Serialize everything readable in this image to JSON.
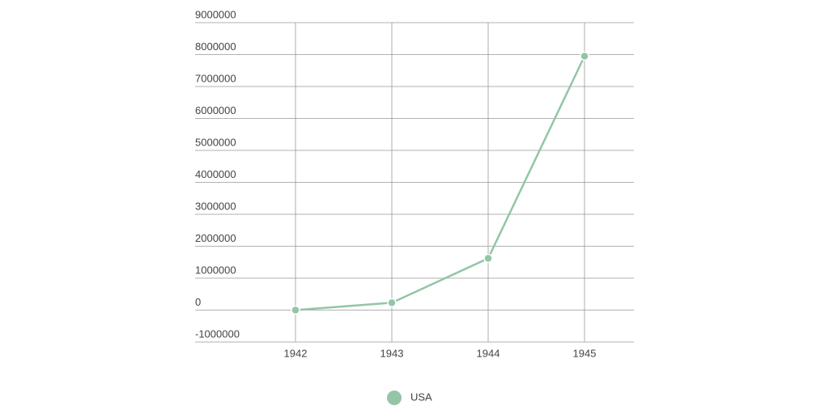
{
  "chart_data": {
    "type": "line",
    "categories": [
      "1942",
      "1943",
      "1944",
      "1945"
    ],
    "series": [
      {
        "name": "USA",
        "color": "#93c5a6",
        "values": [
          0,
          230000,
          1620000,
          7950000
        ]
      }
    ],
    "ylim": [
      -1000000,
      9000000
    ],
    "yticks": [
      -1000000,
      0,
      1000000,
      2000000,
      3000000,
      4000000,
      5000000,
      6000000,
      7000000,
      8000000,
      9000000
    ],
    "grid": true
  }
}
